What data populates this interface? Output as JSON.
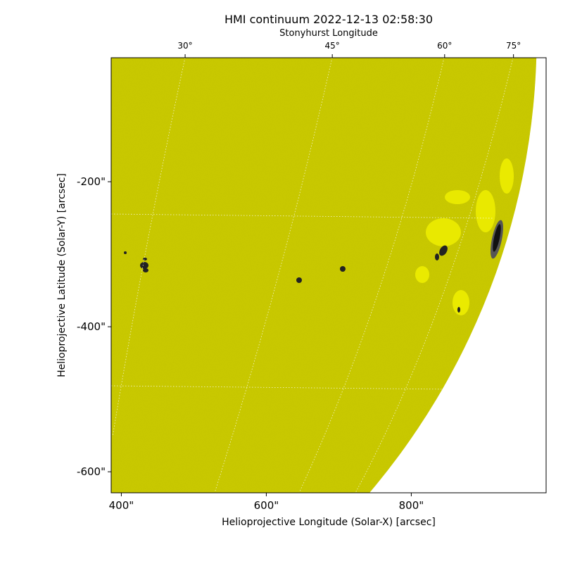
{
  "chart_data": {
    "type": "image",
    "title": "HMI continuum 2022-12-13 02:58:30",
    "xlabel": "Helioprojective Longitude (Solar-X) [arcsec]",
    "ylabel": "Helioprojective Latitude (Solar-Y) [arcsec]",
    "x2label": "Stonyhurst Longitude",
    "xlim": [
      386,
      986
    ],
    "ylim": [
      -629,
      -29
    ],
    "xticks": [
      {
        "value": 400,
        "label": "400\""
      },
      {
        "value": 600,
        "label": "600\""
      },
      {
        "value": 800,
        "label": "800\""
      }
    ],
    "yticks": [
      {
        "value": -200,
        "label": "-200\""
      },
      {
        "value": -400,
        "label": "-400\""
      },
      {
        "value": -600,
        "label": "-600\""
      }
    ],
    "x2ticks": [
      {
        "value": 488,
        "label": "30°"
      },
      {
        "value": 691,
        "label": "45°"
      },
      {
        "value": 846,
        "label": "60°"
      },
      {
        "value": 941,
        "label": "75°"
      }
    ],
    "color": "#c8c800"
  }
}
